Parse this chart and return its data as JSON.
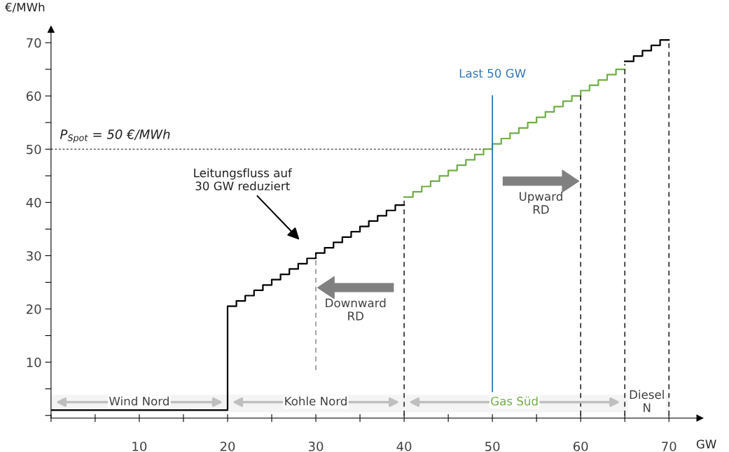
{
  "chart_data": {
    "type": "step",
    "xlabel": "GW",
    "ylabel": "€/MWh",
    "xlim": [
      0,
      73.5
    ],
    "ylim": [
      -0.5,
      72.5
    ],
    "xticks": [
      {
        "value": 0,
        "label": null
      },
      {
        "value": 5,
        "label": null
      },
      10,
      {
        "value": 15,
        "label": null
      },
      20,
      {
        "value": 25,
        "label": null
      },
      30,
      {
        "value": 35,
        "label": null
      },
      40,
      {
        "value": 45,
        "label": null
      },
      50,
      {
        "value": 55,
        "label": null
      },
      60,
      {
        "value": 65,
        "label": null
      },
      70
    ],
    "yticks": [
      {
        "value": 0,
        "label": null
      },
      {
        "value": 5,
        "label": null
      },
      10,
      {
        "value": 15,
        "label": null
      },
      20,
      {
        "value": 25,
        "label": null
      },
      30,
      {
        "value": 35,
        "label": null
      },
      40,
      {
        "value": 45,
        "label": null
      },
      50,
      {
        "value": 55,
        "label": null
      },
      60,
      {
        "value": 65,
        "label": null
      },
      70
    ],
    "grid": false,
    "legend": false,
    "series": [
      {
        "color": "#000000",
        "x": [
          0,
          20,
          21,
          22,
          23,
          24,
          25,
          26,
          27,
          28,
          29,
          30,
          31,
          32,
          33,
          34,
          35,
          36,
          37,
          38,
          39,
          40
        ],
        "values": [
          1,
          20.5,
          21.5,
          22.5,
          23.5,
          24.5,
          25.5,
          26.5,
          27.5,
          28.5,
          29.5,
          30.5,
          31.5,
          32.5,
          33.5,
          34.5,
          35.5,
          36.5,
          37.5,
          38.5,
          39.5,
          39.5
        ]
      },
      {
        "color": "#70ad47",
        "x": [
          40,
          41,
          42,
          43,
          44,
          45,
          46,
          47,
          48,
          49,
          50,
          51,
          52,
          53,
          54,
          55,
          56,
          57,
          58,
          59,
          60,
          61,
          62,
          63,
          64,
          65
        ],
        "values": [
          41,
          42,
          43,
          44,
          45,
          46,
          47,
          48,
          49,
          50,
          51,
          52,
          53,
          54,
          55,
          56,
          57,
          58,
          59,
          60,
          61,
          62,
          63,
          64,
          65,
          65
        ]
      },
      {
        "color": "#000000",
        "x": [
          65,
          66,
          67,
          68,
          69,
          70
        ],
        "values": [
          66.5,
          67.5,
          68.5,
          69.5,
          70.5,
          70.5
        ]
      }
    ],
    "ref_lines": [
      {
        "axis": "y",
        "value": 50,
        "label": "P$_{Spot}$ = 50 €/MWh",
        "color": "#595959",
        "line_style": "dotted"
      },
      {
        "axis": "x",
        "value": 50,
        "label": "Last 50 GW",
        "color": "#2e75b6",
        "line_style": "solid"
      },
      {
        "axis": "x",
        "value": 30,
        "color": "#7f7f7f",
        "line_style": "dashed"
      },
      {
        "axis": "x",
        "value": 40,
        "color": "#000000",
        "line_style": "dashed"
      },
      {
        "axis": "x",
        "value": 60,
        "color": "#000000",
        "line_style": "dashed"
      },
      {
        "axis": "x",
        "value": 65,
        "color": "#000000",
        "line_style": "dashed"
      },
      {
        "axis": "x",
        "value": 70,
        "color": "#000000",
        "line_style": "dashed"
      }
    ],
    "bands": [
      {
        "axis": "x",
        "from": 0,
        "to": 20,
        "label": "Wind Nord"
      },
      {
        "axis": "x",
        "from": 20,
        "to": 40,
        "label": "Kohle Nord"
      },
      {
        "axis": "x",
        "from": 40,
        "to": 65,
        "label": "Gas Süd"
      },
      {
        "axis": "x",
        "from": 65,
        "to": 70,
        "label": "Diesel\nN"
      }
    ],
    "annotations": [
      "Leitungsfluss auf\n30 GW reduziert",
      {
        "text": "Downward\nRD",
        "x": 30,
        "y": 24
      },
      {
        "text": "Upward\nRD",
        "x": 60,
        "y": 44
      }
    ]
  }
}
